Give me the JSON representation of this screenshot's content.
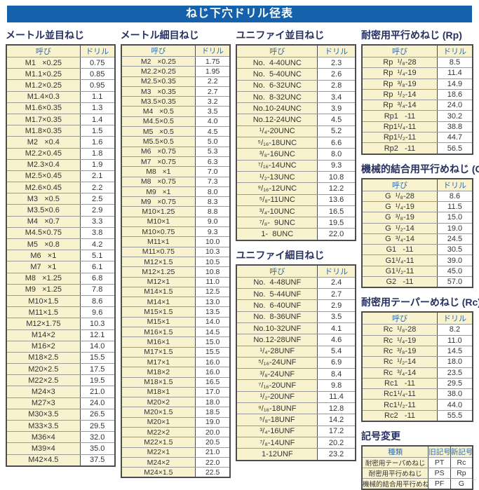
{
  "title": "ねじ下穴ドリル径表",
  "colors": {
    "banner_blue": "#1561ab",
    "section_title_navy": "#26315f",
    "table_header_blue": "#2e6db4",
    "name_cell_cream": "#f8f2cf",
    "border_dark": "#4d4d4d",
    "border_light": "#999999"
  },
  "corner_mark": "--",
  "sections": {
    "metric_coarse": {
      "title": "メートル並目ねじ",
      "headers": [
        "呼び",
        "ドリル"
      ],
      "rows": [
        [
          "M1   ×0.25",
          "0.75"
        ],
        [
          "M1.1×0.25",
          "0.85"
        ],
        [
          "M1.2×0.25",
          "0.95"
        ],
        [
          "M1.4×0.3",
          "1.1"
        ],
        [
          "M1.6×0.35",
          "1.3"
        ],
        [
          "M1.7×0.35",
          "1.4"
        ],
        [
          "M1.8×0.35",
          "1.5"
        ],
        [
          "M2   ×0.4",
          "1.6"
        ],
        [
          "M2.2×0.45",
          "1.8"
        ],
        [
          "M2.3×0.4",
          "1.9"
        ],
        [
          "M2.5×0.45",
          "2.1"
        ],
        [
          "M2.6×0.45",
          "2.2"
        ],
        [
          "M3   ×0.5",
          "2.5"
        ],
        [
          "M3.5×0.6",
          "2.9"
        ],
        [
          "M4   ×0.7",
          "3.3"
        ],
        [
          "M4.5×0.75",
          "3.8"
        ],
        [
          "M5   ×0.8",
          "4.2"
        ],
        [
          "M6   ×1",
          "5.1"
        ],
        [
          "M7   ×1",
          "6.1"
        ],
        [
          "M8   ×1.25",
          "6.8"
        ],
        [
          "M9   ×1.25",
          "7.8"
        ],
        [
          "M10×1.5",
          "8.6"
        ],
        [
          "M11×1.5",
          "9.6"
        ],
        [
          "M12×1.75",
          "10.3"
        ],
        [
          "M14×2",
          "12.1"
        ],
        [
          "M16×2",
          "14.0"
        ],
        [
          "M18×2.5",
          "15.5"
        ],
        [
          "M20×2.5",
          "17.5"
        ],
        [
          "M22×2.5",
          "19.5"
        ],
        [
          "M24×3",
          "21.0"
        ],
        [
          "M27×3",
          "24.0"
        ],
        [
          "M30×3.5",
          "26.5"
        ],
        [
          "M33×3.5",
          "29.5"
        ],
        [
          "M36×4",
          "32.0"
        ],
        [
          "M39×4",
          "35.0"
        ],
        [
          "M42×4.5",
          "37.5"
        ]
      ]
    },
    "metric_fine": {
      "title": "メートル細目ねじ",
      "headers": [
        "呼び",
        "ドリル"
      ],
      "rows": [
        [
          "M2   ×0.25",
          "1.75"
        ],
        [
          "M2.2×0.25",
          "1.95"
        ],
        [
          "M2.5×0.35",
          "2.2"
        ],
        [
          "M3   ×0.35",
          "2.7"
        ],
        [
          "M3.5×0.35",
          "3.2"
        ],
        [
          "M4   ×0.5",
          "3.5"
        ],
        [
          "M4.5×0.5",
          "4.0"
        ],
        [
          "M5   ×0.5",
          "4.5"
        ],
        [
          "M5.5×0.5",
          "5.0"
        ],
        [
          "M6   ×0.75",
          "5.3"
        ],
        [
          "M7   ×0.75",
          "6.3"
        ],
        [
          "M8   ×1",
          "7.0"
        ],
        [
          "M8   ×0.75",
          "7.3"
        ],
        [
          "M9   ×1",
          "8.0"
        ],
        [
          "M9   ×0.75",
          "8.3"
        ],
        [
          "M10×1.25",
          "8.8"
        ],
        [
          "M10×1",
          "9.0"
        ],
        [
          "M10×0.75",
          "9.3"
        ],
        [
          "M11×1",
          "10.0"
        ],
        [
          "M11×0.75",
          "10.3"
        ],
        [
          "M12×1.5",
          "10.5"
        ],
        [
          "M12×1.25",
          "10.8"
        ],
        [
          "M12×1",
          "11.0"
        ],
        [
          "M14×1.5",
          "12.5"
        ],
        [
          "M14×1",
          "13.0"
        ],
        [
          "M15×1.5",
          "13.5"
        ],
        [
          "M15×1",
          "14.0"
        ],
        [
          "M16×1.5",
          "14.5"
        ],
        [
          "M16×1",
          "15.0"
        ],
        [
          "M17×1.5",
          "15.5"
        ],
        [
          "M17×1",
          "16.0"
        ],
        [
          "M18×2",
          "16.0"
        ],
        [
          "M18×1.5",
          "16.5"
        ],
        [
          "M18×1",
          "17.0"
        ],
        [
          "M20×2",
          "18.0"
        ],
        [
          "M20×1.5",
          "18.5"
        ],
        [
          "M20×1",
          "19.0"
        ],
        [
          "M22×2",
          "20.0"
        ],
        [
          "M22×1.5",
          "20.5"
        ],
        [
          "M22×1",
          "21.0"
        ],
        [
          "M24×2",
          "22.0"
        ],
        [
          "M24×1.5",
          "22.5"
        ]
      ]
    },
    "unified_coarse": {
      "title": "ユニファイ並目ねじ",
      "headers": [
        "呼び",
        "ドリル"
      ],
      "rows": [
        [
          "No.  4-40UNC",
          "2.3"
        ],
        [
          "No.  5-40UNC",
          "2.6"
        ],
        [
          "No.  6-32UNC",
          "2.8"
        ],
        [
          "No.  8-32UNC",
          "3.4"
        ],
        [
          "No.10-24UNC",
          "3.9"
        ],
        [
          "No.12-24UNC",
          "4.5"
        ],
        [
          "¹/₄-20UNC",
          "5.2"
        ],
        [
          "⁵/₁₆-18UNC",
          "6.6"
        ],
        [
          "³/₈-16UNC",
          "8.0"
        ],
        [
          "⁷/₁₆-14UNC",
          "9.3"
        ],
        [
          "¹/₂-13UNC",
          "10.8"
        ],
        [
          "⁹/₁₆-12UNC",
          "12.2"
        ],
        [
          "⁵/₈-11UNC",
          "13.6"
        ],
        [
          "³/₄-10UNC",
          "16.5"
        ],
        [
          "⁷/₈-  9UNC",
          "19.5"
        ],
        [
          "1-  8UNC",
          "22.0"
        ]
      ]
    },
    "unified_fine": {
      "title": "ユニファイ細目ねじ",
      "headers": [
        "呼び",
        "ドリル"
      ],
      "rows": [
        [
          "No.  4-48UNF",
          "2.4"
        ],
        [
          "No.  5-44UNF",
          "2.7"
        ],
        [
          "No.  6-40UNF",
          "2.9"
        ],
        [
          "No.  8-36UNF",
          "3.5"
        ],
        [
          "No.10-32UNF",
          "4.1"
        ],
        [
          "No.12-28UNF",
          "4.6"
        ],
        [
          "¹/₄-28UNF",
          "5.4"
        ],
        [
          "⁵/₁₆-24UNF",
          "6.9"
        ],
        [
          "³/₈-24UNF",
          "8.4"
        ],
        [
          "⁷/₁₆-20UNF",
          "9.8"
        ],
        [
          "¹/₂-20UNF",
          "11.4"
        ],
        [
          "⁹/₁₆-18UNF",
          "12.8"
        ],
        [
          "⁵/₈-18UNF",
          "14.2"
        ],
        [
          "³/₄-16UNF",
          "17.2"
        ],
        [
          "⁷/₈-14UNF",
          "20.2"
        ],
        [
          "1-12UNF",
          "23.2"
        ]
      ]
    },
    "rp_parallel": {
      "title": "耐密用平行めねじ (Rp)",
      "headers": [
        "呼び",
        "ドリル"
      ],
      "rows": [
        [
          "Rp  ¹/₈-28",
          "8.5"
        ],
        [
          "Rp  ¹/₄-19",
          "11.4"
        ],
        [
          "Rp  ³/₈-19",
          "14.9"
        ],
        [
          "Rp  ¹/₂-14",
          "18.6"
        ],
        [
          "Rp  ³/₄-14",
          "24.0"
        ],
        [
          "Rp1   -11",
          "30.2"
        ],
        [
          "Rp1¹/₄-11",
          "38.8"
        ],
        [
          "Rp1¹/₂-11",
          "44.7"
        ],
        [
          "Rp2   -11",
          "56.5"
        ]
      ]
    },
    "g_parallel": {
      "title": "機械的結合用平行めねじ (G)",
      "headers": [
        "呼び",
        "ドリル"
      ],
      "rows": [
        [
          "G  ¹/₈-28",
          "8.6"
        ],
        [
          "G  ¹/₄-19",
          "11.5"
        ],
        [
          "G  ³/₈-19",
          "15.0"
        ],
        [
          "G  ¹/₂-14",
          "19.0"
        ],
        [
          "G  ³/₄-14",
          "24.5"
        ],
        [
          "G1   -11",
          "30.5"
        ],
        [
          "G1¹/₄-11",
          "39.0"
        ],
        [
          "G1¹/₂-11",
          "45.0"
        ],
        [
          "G2   -11",
          "57.0"
        ]
      ]
    },
    "rc_taper": {
      "title": "耐密用テーパーめねじ (Rc)",
      "headers": [
        "呼び",
        "ドリル"
      ],
      "rows": [
        [
          "Rc  ¹/₈-28",
          "8.2"
        ],
        [
          "Rc  ¹/₄-19",
          "11.0"
        ],
        [
          "Rc  ³/₈-19",
          "14.5"
        ],
        [
          "Rc  ¹/₂-14",
          "18.0"
        ],
        [
          "Rc  ³/₄-14",
          "23.5"
        ],
        [
          "Rc1   -11",
          "29.5"
        ],
        [
          "Rc1¹/₄-11",
          "38.0"
        ],
        [
          "Rc1¹/₂-11",
          "44.0"
        ],
        [
          "Rc2   -11",
          "55.5"
        ]
      ]
    },
    "symbol_change": {
      "title": "記号変更",
      "headers": [
        "種類",
        "旧記号",
        "新記号"
      ],
      "rows": [
        [
          "耐密用テーパめねじ",
          "PT",
          "Rc"
        ],
        [
          "耐密用平行めねじ",
          "PS",
          "Rp"
        ],
        [
          "機械的結合用平行めねじ",
          "PF",
          "G"
        ]
      ]
    }
  }
}
